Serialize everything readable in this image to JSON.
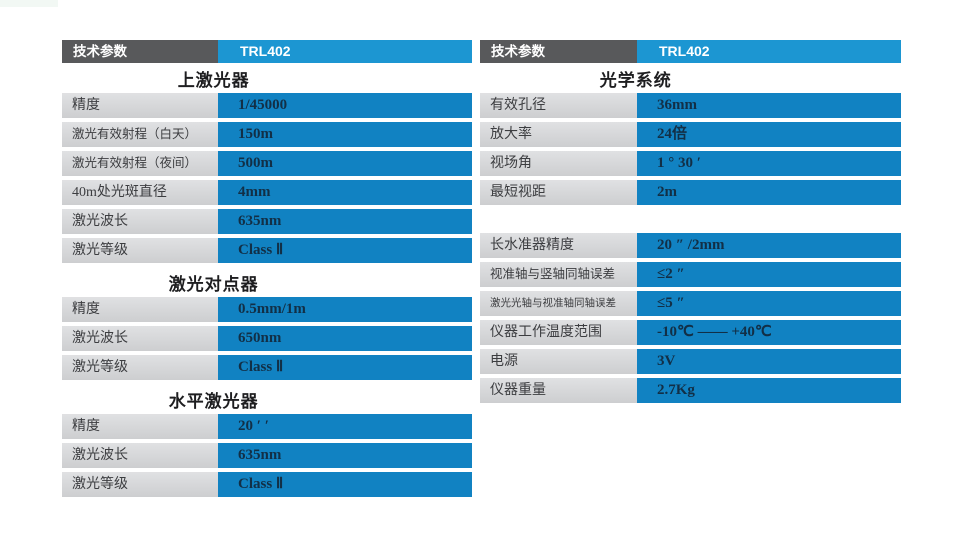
{
  "colors": {
    "header_gray": "#58595b",
    "header_blue": "#1c96d2",
    "row_blue": "#1182c2",
    "label_gray": "#d6d7d9",
    "value_text": "#122f46"
  },
  "tables": [
    {
      "id": "left",
      "header": {
        "param_label": "技术参数",
        "model": "TRL402"
      },
      "blocks": [
        {
          "type": "section",
          "title": "上激光器"
        },
        {
          "type": "row",
          "label": "精度",
          "value": "1/45000"
        },
        {
          "type": "row",
          "label": "激光有效射程（白天）",
          "value": "150m"
        },
        {
          "type": "row",
          "label": "激光有效射程（夜间）",
          "value": "500m"
        },
        {
          "type": "row",
          "label": "40m处光斑直径",
          "value": "4mm"
        },
        {
          "type": "row",
          "label": "激光波长",
          "value": "635nm"
        },
        {
          "type": "row",
          "label": "激光等级",
          "value": "Class Ⅱ"
        },
        {
          "type": "section",
          "title": "激光对点器"
        },
        {
          "type": "row",
          "label": "精度",
          "value": "0.5mm/1m"
        },
        {
          "type": "row",
          "label": "激光波长",
          "value": "650nm"
        },
        {
          "type": "row",
          "label": "激光等级",
          "value": "Class Ⅱ"
        },
        {
          "type": "section",
          "title": "水平激光器"
        },
        {
          "type": "row",
          "label": "精度",
          "value": "20 ′ ′"
        },
        {
          "type": "row",
          "label": "激光波长",
          "value": "635nm"
        },
        {
          "type": "row",
          "label": "激光等级",
          "value": "Class Ⅱ"
        }
      ]
    },
    {
      "id": "right",
      "header": {
        "param_label": "技术参数",
        "model": "TRL402"
      },
      "blocks": [
        {
          "type": "section",
          "title": "光学系统"
        },
        {
          "type": "row",
          "label": "有效孔径",
          "value": "36mm"
        },
        {
          "type": "row",
          "label": "放大率",
          "value": "24倍"
        },
        {
          "type": "row",
          "label": "视场角",
          "value": "1 ° 30 ′"
        },
        {
          "type": "row",
          "label": "最短视距",
          "value": "2m"
        },
        {
          "type": "gap"
        },
        {
          "type": "row",
          "label": "长水准器精度",
          "value": "20 ″ /2mm"
        },
        {
          "type": "row",
          "label": "视准轴与竖轴同轴误差",
          "value": "≤2 ″"
        },
        {
          "type": "row",
          "label": "激光光轴与视准轴同轴误差",
          "value": "≤5 ″"
        },
        {
          "type": "row",
          "label": "仪器工作温度范围",
          "value": "-10℃ —— +40℃"
        },
        {
          "type": "row",
          "label": "电源",
          "value": "3V"
        },
        {
          "type": "row",
          "label": "仪器重量",
          "value": "2.7Kg"
        }
      ]
    }
  ]
}
